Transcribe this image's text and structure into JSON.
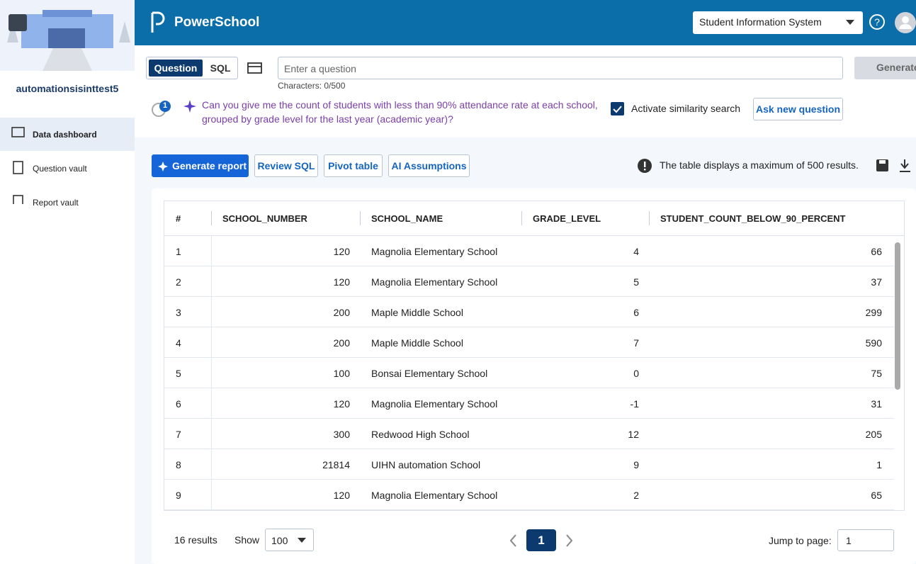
{
  "sidebar": {
    "org": "automationsisinttest5",
    "nav": [
      "Data dashboard",
      "Question vault",
      "Report vault"
    ]
  },
  "header": {
    "brand": "PowerSchool",
    "app_select": "Student Information System"
  },
  "query": {
    "tabs": [
      "Question",
      "SQL"
    ],
    "placeholder": "Enter a question",
    "char_count": "Characters: 0/500",
    "generate": "Generate",
    "badge": "1",
    "question": "Can you give me the count of students with less than 90% attendance rate at each school, grouped by grade level for the last year (academic year)?",
    "similarity": "Activate similarity search",
    "ask_new": "Ask new question"
  },
  "toolbar": {
    "buttons": [
      "Generate report",
      "Review SQL",
      "Pivot table",
      "AI Assumptions"
    ],
    "notice": "The table displays a maximum of 500 results."
  },
  "table": {
    "columns": [
      "#",
      "SCHOOL_NUMBER",
      "SCHOOL_NAME",
      "GRADE_LEVEL",
      "STUDENT_COUNT_BELOW_90_PERCENT"
    ],
    "rows": [
      [
        1,
        120,
        "Magnolia Elementary School",
        4,
        66
      ],
      [
        2,
        120,
        "Magnolia Elementary School",
        5,
        37
      ],
      [
        3,
        200,
        "Maple Middle School",
        6,
        299
      ],
      [
        4,
        200,
        "Maple Middle School",
        7,
        590
      ],
      [
        5,
        100,
        "Bonsai Elementary School",
        0,
        75
      ],
      [
        6,
        120,
        "Magnolia Elementary School",
        -1,
        31
      ],
      [
        7,
        300,
        "Redwood High School",
        12,
        205
      ],
      [
        8,
        21814,
        "UIHN automation School",
        9,
        1
      ],
      [
        9,
        120,
        "Magnolia Elementary School",
        2,
        65
      ]
    ]
  },
  "footer": {
    "results": "16 results",
    "show_label": "Show",
    "page_size": "100",
    "page": "1",
    "jump_label": "Jump to page:",
    "jump_value": "1"
  }
}
